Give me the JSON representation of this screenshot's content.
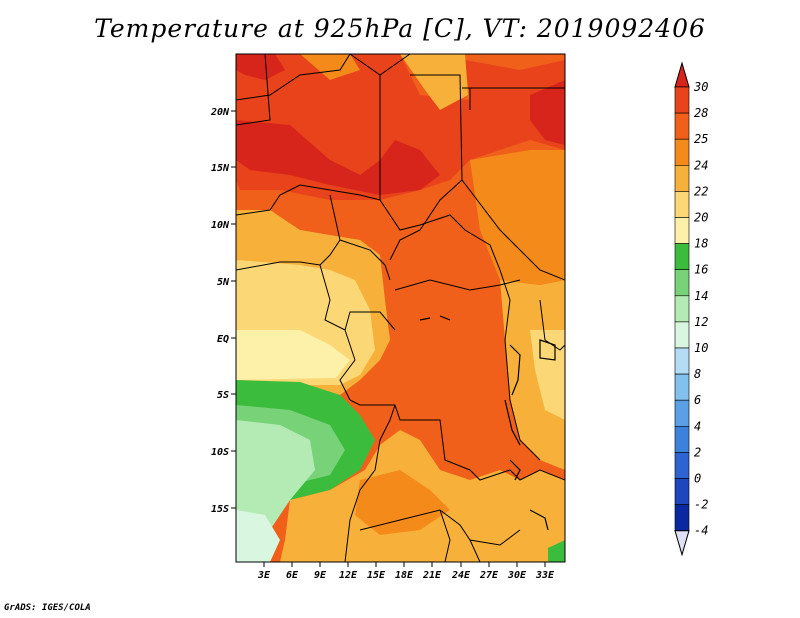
{
  "title": "Temperature at 925hPa [C], VT: 2019092406",
  "credit": "GrADS: IGES/COLA",
  "map": {
    "lat_ticks": [
      "20N",
      "15N",
      "10N",
      "5N",
      "EQ",
      "5S",
      "10S",
      "15S"
    ],
    "lon_ticks": [
      "3E",
      "6E",
      "9E",
      "12E",
      "15E",
      "18E",
      "21E",
      "24E",
      "27E",
      "30E",
      "33E"
    ]
  },
  "colorbar": {
    "labels": [
      "30",
      "28",
      "25",
      "24",
      "22",
      "20",
      "18",
      "16",
      "14",
      "12",
      "10",
      "8",
      "6",
      "4",
      "2",
      "0",
      "-2",
      "-4"
    ],
    "colors": {
      "above_30": "#d7251c",
      "28_30": "#e8431a",
      "25_28": "#f0601a",
      "24_25": "#f38a1a",
      "22_24": "#f7b13a",
      "20_22": "#fbd776",
      "18_20": "#fdf0a8",
      "16_18": "#3cbc3c",
      "14_16": "#78d278",
      "12_14": "#b4ebb4",
      "10_12": "#d9f7e0",
      "8_10": "#b4dcf5",
      "6_8": "#82c0ee",
      "4_6": "#5aa0e6",
      "2_4": "#3c82dc",
      "0_2": "#2d64d2",
      "-2_0": "#1e46be",
      "-4_-2": "#0a28a0",
      "below_-4": "#e0e0f5"
    }
  }
}
